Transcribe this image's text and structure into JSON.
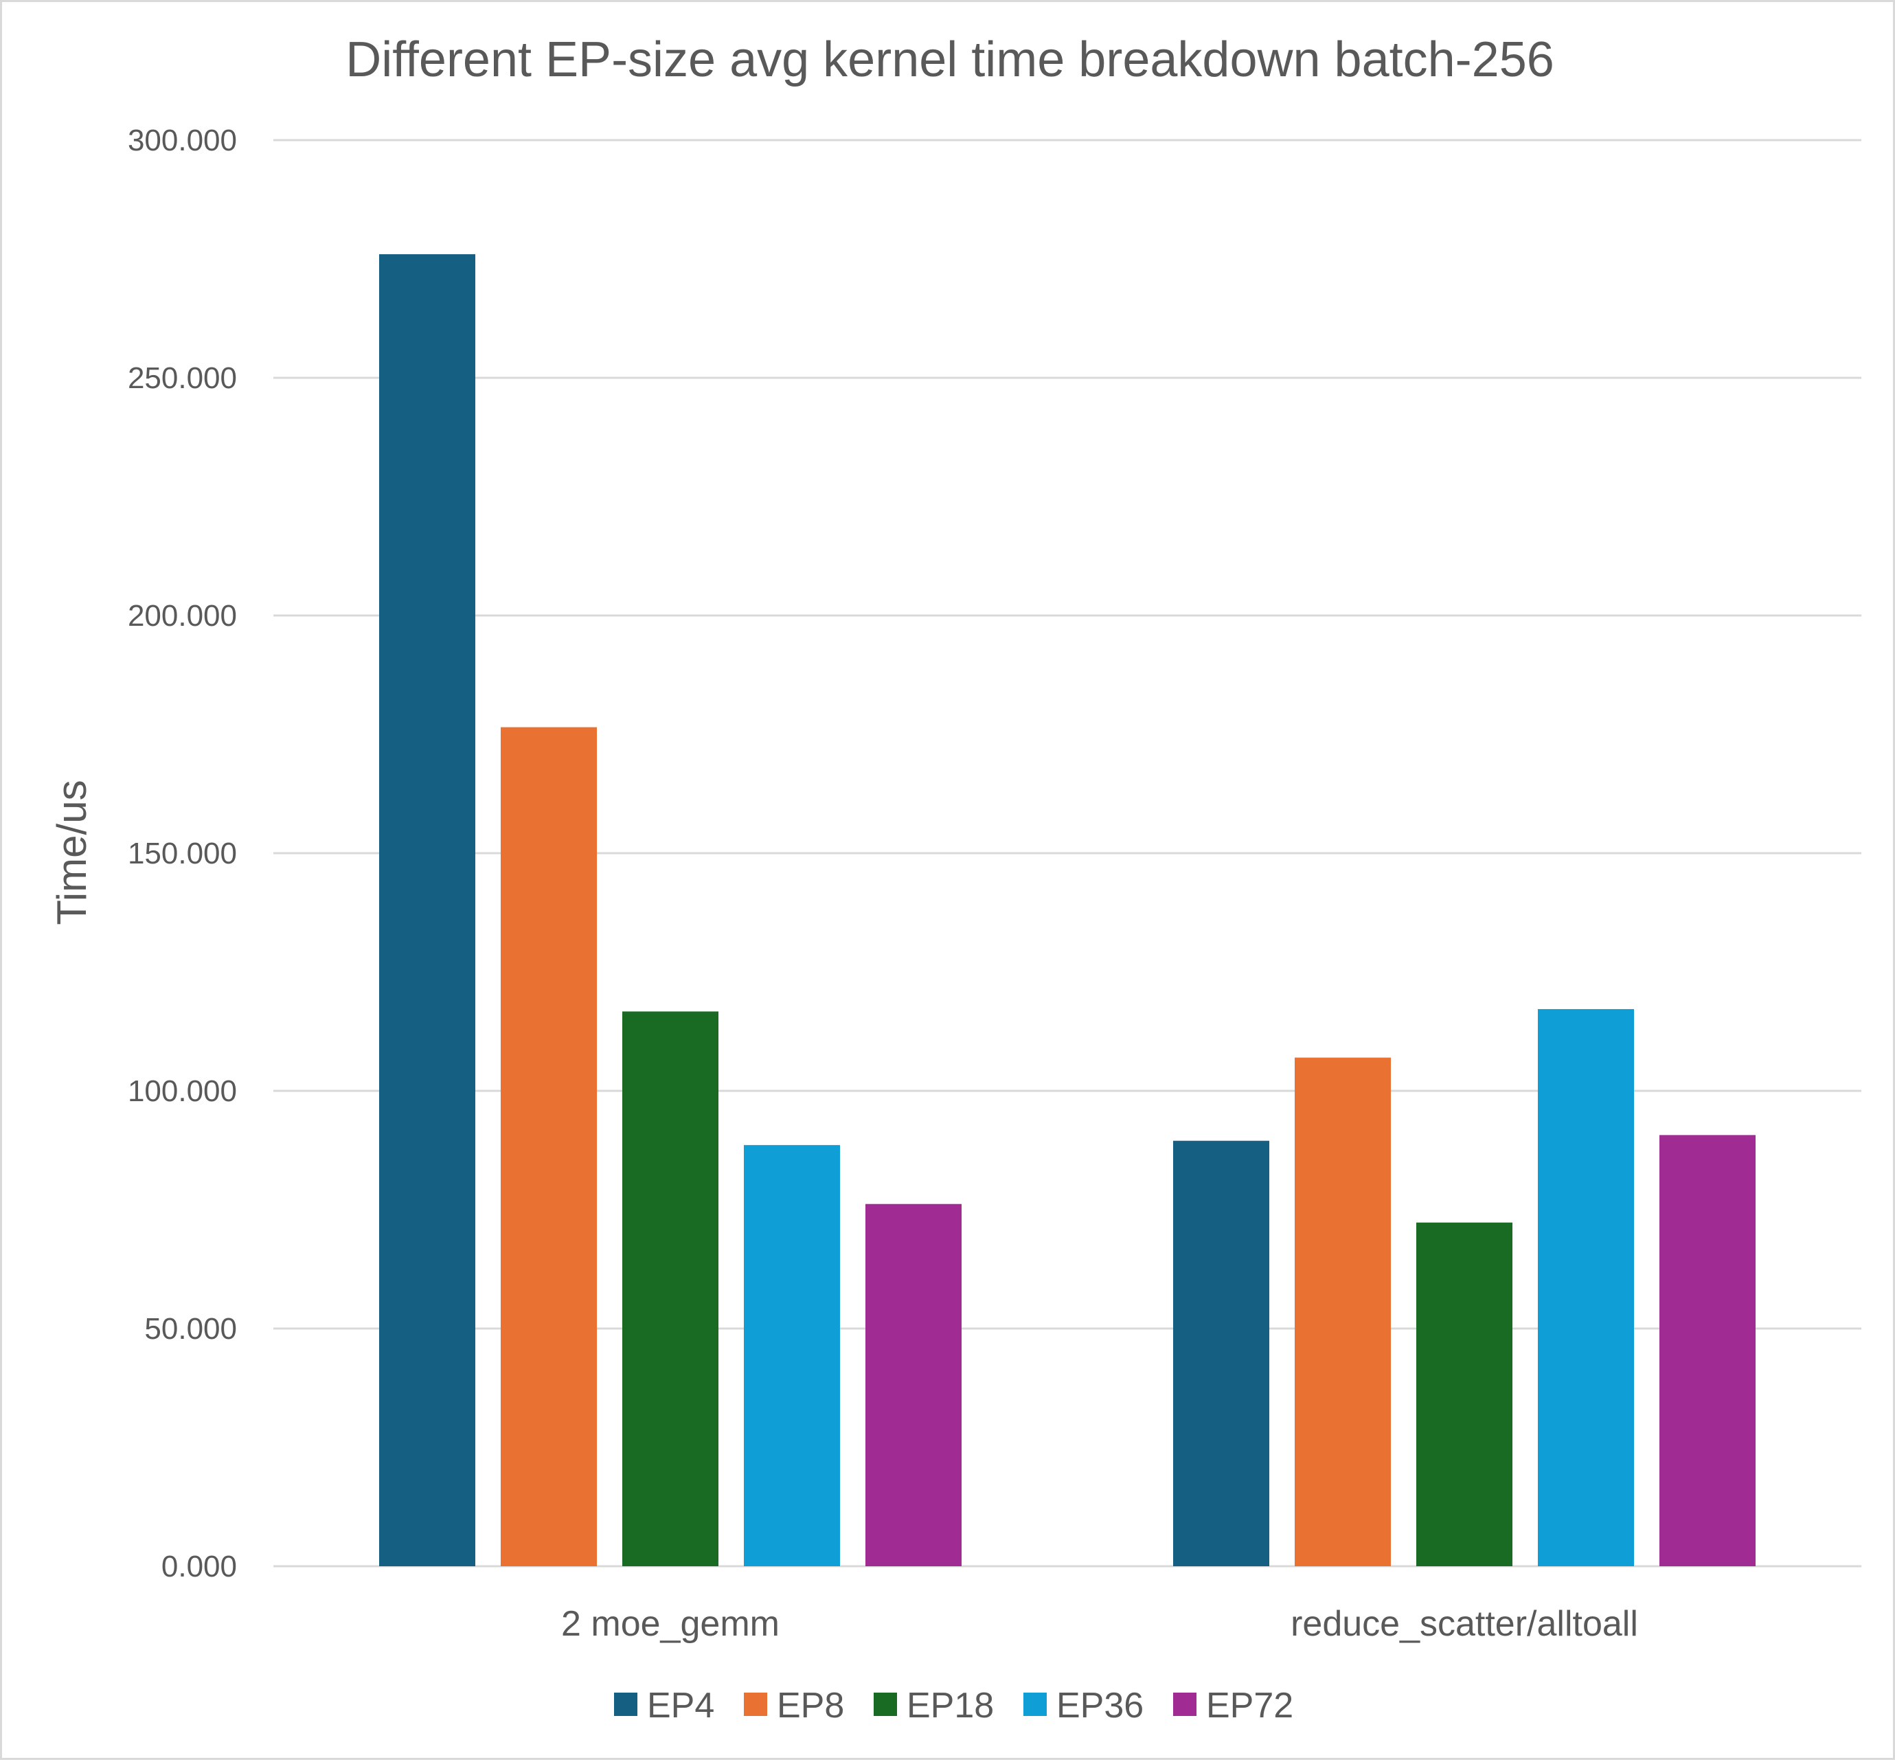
{
  "chart_data": {
    "type": "bar",
    "title": "Different EP-size avg kernel time breakdown batch-256",
    "xlabel": "",
    "ylabel": "Time/us",
    "ylim": [
      0,
      300
    ],
    "yticks": [
      "0.000",
      "50.000",
      "100.000",
      "150.000",
      "200.000",
      "250.000",
      "300.000"
    ],
    "ytick_values": [
      0,
      50,
      100,
      150,
      200,
      250,
      300
    ],
    "categories": [
      "2 moe_gemm",
      "reduce_scatter/alltoall"
    ],
    "series": [
      {
        "name": "EP4",
        "color": "#156082",
        "values": [
          276.0,
          89.5
        ]
      },
      {
        "name": "EP8",
        "color": "#e97132",
        "values": [
          176.5,
          107.0
        ]
      },
      {
        "name": "EP18",
        "color": "#196b24",
        "values": [
          116.7,
          72.3
        ]
      },
      {
        "name": "EP36",
        "color": "#0f9ed5",
        "values": [
          88.6,
          117.2
        ]
      },
      {
        "name": "EP72",
        "color": "#a02b93",
        "values": [
          76.2,
          90.7
        ]
      }
    ],
    "grid": true,
    "legend_position": "bottom"
  }
}
